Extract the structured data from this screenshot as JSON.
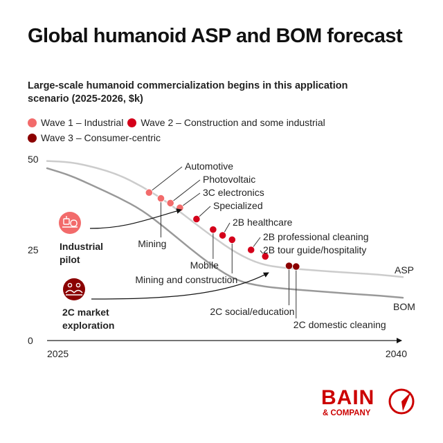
{
  "title": "Global humanoid ASP and BOM forecast",
  "subtitle": "Large-scale humanoid commercialization begins in this application scenario (2025-2026, $k)",
  "legend": [
    {
      "label": "Wave 1 – Industrial",
      "color": "#f26b6b"
    },
    {
      "label": "Wave 2 – Construction and some industrial",
      "color": "#d4001a"
    },
    {
      "label": "Wave 3 – Consumer-centric",
      "color": "#8b0000"
    }
  ],
  "annotations": {
    "industrial_pilot": [
      "Industrial",
      "pilot"
    ],
    "market_exploration": [
      "2C market",
      "exploration"
    ]
  },
  "series_labels": {
    "asp": "ASP",
    "bom": "BOM"
  },
  "brand": {
    "name": "BAIN",
    "sub": "& COMPANY",
    "color": "#cc0000"
  },
  "chart_data": {
    "type": "line",
    "title": "Global humanoid ASP and BOM forecast",
    "subtitle": "Large-scale humanoid commercialization begins in this application scenario (2025-2026, $k)",
    "xlabel": "",
    "ylabel": "",
    "x_ticks": [
      "2025",
      "2040"
    ],
    "y_ticks": [
      0,
      25,
      50
    ],
    "xlim": [
      2025,
      2040
    ],
    "ylim": [
      0,
      50
    ],
    "series": [
      {
        "name": "ASP",
        "color": "#cccccc",
        "points": [
          [
            2025,
            49.5
          ],
          [
            2026,
            49.2
          ],
          [
            2027,
            47.8
          ],
          [
            2028,
            45.8
          ],
          [
            2029,
            42.5
          ],
          [
            2030,
            38.5
          ],
          [
            2031,
            33.5
          ],
          [
            2032,
            28.5
          ],
          [
            2033,
            24.0
          ],
          [
            2034,
            21.0
          ],
          [
            2035,
            20.0
          ],
          [
            2036,
            19.5
          ],
          [
            2037,
            19.0
          ],
          [
            2038,
            18.6
          ],
          [
            2039,
            18.2
          ],
          [
            2040,
            17.5
          ]
        ]
      },
      {
        "name": "BOM",
        "color": "#999999",
        "points": [
          [
            2025,
            47.5
          ],
          [
            2026,
            45.5
          ],
          [
            2027,
            42.5
          ],
          [
            2028,
            39.5
          ],
          [
            2029,
            36.0
          ],
          [
            2030,
            31.0
          ],
          [
            2031,
            25.5
          ],
          [
            2032,
            20.5
          ],
          [
            2033,
            16.5
          ],
          [
            2034,
            15.0
          ],
          [
            2035,
            14.3
          ],
          [
            2036,
            13.8
          ],
          [
            2037,
            13.3
          ],
          [
            2038,
            12.8
          ],
          [
            2039,
            12.4
          ],
          [
            2040,
            11.8
          ]
        ]
      }
    ],
    "scenarios": [
      {
        "label": "Automotive",
        "wave": 1,
        "x": 2029.3,
        "y": 40.8
      },
      {
        "label": "Mining",
        "wave": 1,
        "x": 2029.8,
        "y": 39.2
      },
      {
        "label": "Photovoltaic",
        "wave": 1,
        "x": 2030.2,
        "y": 37.9
      },
      {
        "label": "3C electronics",
        "wave": 1,
        "x": 2030.6,
        "y": 36.6
      },
      {
        "label": "Specialized",
        "wave": 2,
        "x": 2031.3,
        "y": 33.5
      },
      {
        "label": "Mobile",
        "wave": 2,
        "x": 2032.0,
        "y": 30.6
      },
      {
        "label": "2B healthcare",
        "wave": 2,
        "x": 2032.4,
        "y": 29.0
      },
      {
        "label": "Mining and construction",
        "wave": 2,
        "x": 2032.8,
        "y": 27.8
      },
      {
        "label": "2B professional cleaning",
        "wave": 2,
        "x": 2033.6,
        "y": 25.0
      },
      {
        "label": "2B tour guide/hospitality",
        "wave": 2,
        "x": 2034.2,
        "y": 23.2
      },
      {
        "label": "2C social/education",
        "wave": 3,
        "x": 2035.2,
        "y": 20.6
      },
      {
        "label": "2C domestic cleaning",
        "wave": 3,
        "x": 2035.5,
        "y": 20.4
      }
    ]
  }
}
